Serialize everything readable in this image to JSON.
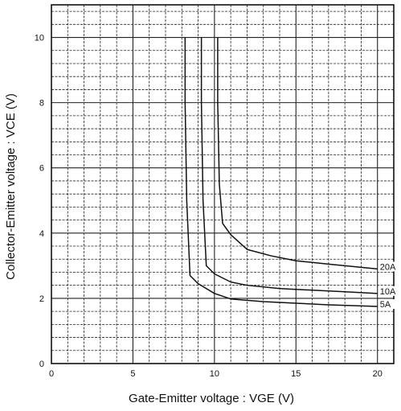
{
  "chart_data": {
    "type": "line",
    "title": "",
    "xlabel": "Gate-Emitter voltage : VGE (V)",
    "ylabel": "Collector-Emitter voltage : VCE (V)",
    "xlim": [
      0,
      21
    ],
    "ylim": [
      0,
      11
    ],
    "xticks": [
      0,
      5,
      10,
      15,
      20
    ],
    "yticks": [
      0,
      2,
      4,
      6,
      8,
      10
    ],
    "grid": true,
    "legend": "none; series labeled at right ends of curves",
    "series": [
      {
        "name": "20A",
        "x": [
          10.2,
          10.2,
          10.3,
          10.5,
          11.0,
          12.0,
          13.5,
          15.0,
          17.0,
          19.0,
          20.0
        ],
        "y": [
          10.0,
          8.0,
          5.5,
          4.3,
          3.95,
          3.5,
          3.3,
          3.15,
          3.05,
          2.95,
          2.9
        ]
      },
      {
        "name": "10A",
        "x": [
          9.2,
          9.2,
          9.3,
          9.5,
          10.0,
          11.0,
          12.0,
          14.0,
          16.0,
          18.0,
          20.0
        ],
        "y": [
          10.0,
          8.0,
          5.0,
          3.0,
          2.75,
          2.5,
          2.4,
          2.3,
          2.25,
          2.2,
          2.15
        ]
      },
      {
        "name": "5A",
        "x": [
          8.2,
          8.2,
          8.3,
          8.5,
          9.0,
          10.0,
          11.0,
          13.0,
          15.0,
          17.0,
          20.0
        ],
        "y": [
          10.0,
          8.0,
          5.0,
          2.7,
          2.45,
          2.15,
          1.98,
          1.9,
          1.85,
          1.8,
          1.75
        ]
      }
    ]
  }
}
